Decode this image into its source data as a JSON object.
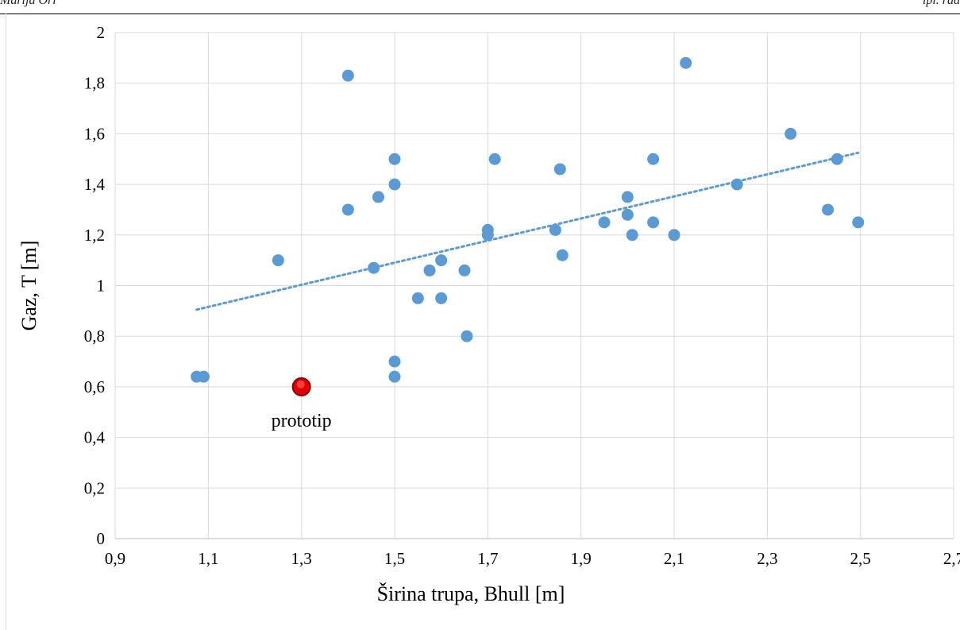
{
  "header": {
    "left_text": "Marija Ori",
    "right_text": "ipl. rad"
  },
  "chart_data": {
    "type": "scatter",
    "xlabel": "Širina trupa, Bhull [m]",
    "ylabel": "Gaz, T [m]",
    "xlim": [
      0.9,
      2.7
    ],
    "ylim": [
      0,
      2
    ],
    "x_ticks": [
      "0,9",
      "1,1",
      "1,3",
      "1,5",
      "1,7",
      "1,9",
      "2,1",
      "2,3",
      "2,5",
      "2,7"
    ],
    "y_ticks": [
      "0",
      "0,2",
      "0,4",
      "0,6",
      "0,8",
      "1",
      "1,2",
      "1,4",
      "1,6",
      "1,8",
      "2"
    ],
    "grid": true,
    "series": [
      {
        "color": "#5b9bd5",
        "points": [
          [
            1.075,
            0.64
          ],
          [
            1.09,
            0.64
          ],
          [
            1.25,
            1.1
          ],
          [
            1.4,
            1.83
          ],
          [
            1.4,
            1.3
          ],
          [
            1.455,
            1.07
          ],
          [
            1.465,
            1.35
          ],
          [
            1.5,
            1.5
          ],
          [
            1.5,
            1.4
          ],
          [
            1.5,
            0.7
          ],
          [
            1.5,
            0.64
          ],
          [
            1.55,
            0.95
          ],
          [
            1.575,
            1.06
          ],
          [
            1.6,
            1.1
          ],
          [
            1.6,
            0.95
          ],
          [
            1.65,
            1.06
          ],
          [
            1.655,
            0.8
          ],
          [
            1.7,
            1.22
          ],
          [
            1.7,
            1.2
          ],
          [
            1.715,
            1.5
          ],
          [
            1.845,
            1.22
          ],
          [
            1.855,
            1.46
          ],
          [
            1.86,
            1.12
          ],
          [
            1.95,
            1.25
          ],
          [
            2.0,
            1.35
          ],
          [
            2.0,
            1.28
          ],
          [
            2.01,
            1.2
          ],
          [
            2.055,
            1.5
          ],
          [
            2.055,
            1.25
          ],
          [
            2.1,
            1.2
          ],
          [
            2.125,
            1.88
          ],
          [
            2.235,
            1.4
          ],
          [
            2.35,
            1.6
          ],
          [
            2.43,
            1.3
          ],
          [
            2.45,
            1.5
          ],
          [
            2.495,
            1.25
          ]
        ]
      },
      {
        "color": "#e00000",
        "points": [
          [
            1.3,
            0.6
          ]
        ]
      }
    ],
    "trendline": {
      "type": "linear",
      "color": "#5b9bd5",
      "points": [
        [
          1.075,
          0.905
        ],
        [
          2.495,
          1.525
        ]
      ]
    },
    "annotations": [
      {
        "text": "prototip",
        "x": 1.3,
        "y": 0.6
      }
    ]
  }
}
